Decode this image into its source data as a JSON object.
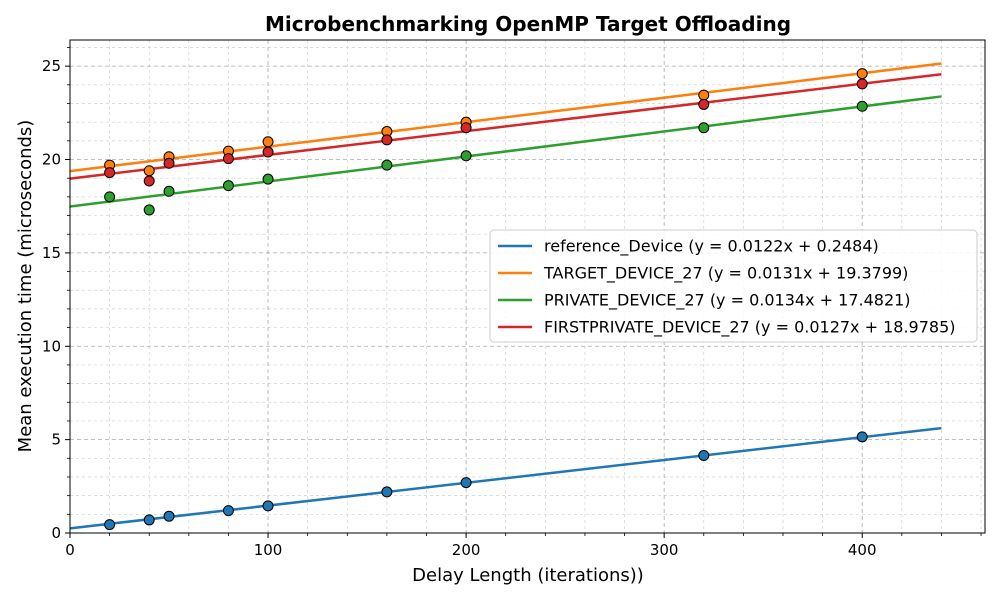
{
  "chart_data": {
    "type": "scatter",
    "title": "Microbenchmarking OpenMP Target Offloading",
    "xlabel": "Delay Length (iterations))",
    "ylabel": "Mean execution time (microseconds)",
    "xlim": [
      0,
      462
    ],
    "ylim": [
      0,
      26.4
    ],
    "x_ticks": [
      0,
      100,
      200,
      300,
      400
    ],
    "y_ticks": [
      0,
      5,
      10,
      15,
      20,
      25
    ],
    "grid": true,
    "legend_position": "center-right",
    "fit_x_range": [
      0,
      440
    ],
    "x": [
      20,
      40,
      50,
      80,
      100,
      160,
      200,
      320,
      400
    ],
    "series": [
      {
        "name": "reference_Device (y = 0.0122x + 0.2484)",
        "color": "#1f77b4",
        "slope": 0.0122,
        "intercept": 0.2484,
        "values": [
          0.45,
          0.7,
          0.9,
          1.2,
          1.45,
          2.2,
          2.7,
          4.15,
          5.15
        ]
      },
      {
        "name": "TARGET_DEVICE_27 (y = 0.0131x + 19.3799)",
        "color": "#ff7f0e",
        "slope": 0.0131,
        "intercept": 19.3799,
        "values": [
          19.7,
          19.4,
          20.15,
          20.45,
          20.95,
          21.5,
          22.0,
          23.45,
          24.6
        ]
      },
      {
        "name": "PRIVATE_DEVICE_27 (y = 0.0134x + 17.4821)",
        "color": "#2ca02c",
        "slope": 0.0134,
        "intercept": 17.4821,
        "values": [
          18.0,
          17.3,
          18.3,
          18.6,
          18.95,
          19.7,
          20.2,
          21.7,
          22.85
        ]
      },
      {
        "name": "FIRSTPRIVATE_DEVICE_27 (y = 0.0127x + 18.9785)",
        "color": "#d62728",
        "slope": 0.0127,
        "intercept": 18.9785,
        "values": [
          19.3,
          18.85,
          19.8,
          20.05,
          20.4,
          21.05,
          21.7,
          22.95,
          24.05
        ]
      }
    ]
  }
}
